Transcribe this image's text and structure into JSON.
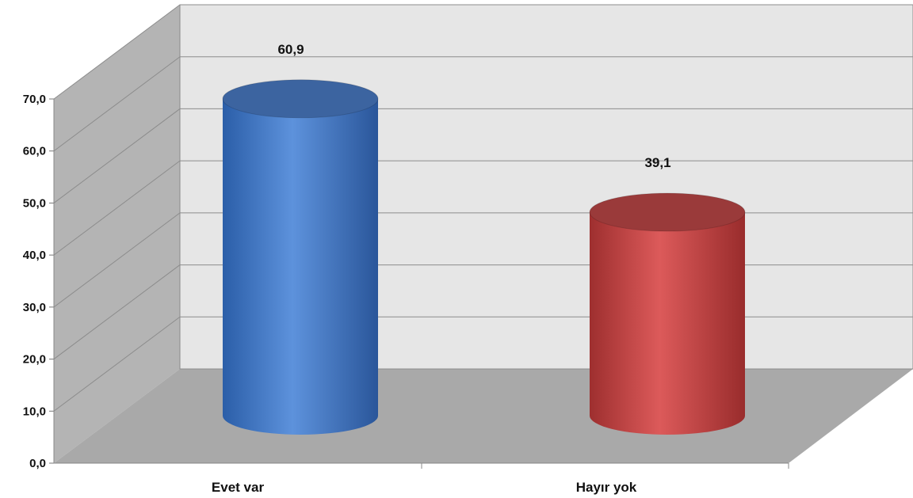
{
  "chart_data": {
    "type": "bar",
    "style": "3d-cylinder",
    "title": "",
    "xlabel": "",
    "ylabel": "",
    "categories": [
      "Evet var",
      "Hayır yok"
    ],
    "values": [
      60.9,
      39.1
    ],
    "value_labels": [
      "60,9",
      "39,1"
    ],
    "ylim": [
      0,
      70
    ],
    "yticks": [
      "0,0",
      "10,0",
      "20,0",
      "30,0",
      "40,0",
      "50,0",
      "60,0",
      "70,0"
    ],
    "grid": true,
    "legend": "none",
    "colors": [
      "#4a7fcc",
      "#c84b4b"
    ]
  }
}
